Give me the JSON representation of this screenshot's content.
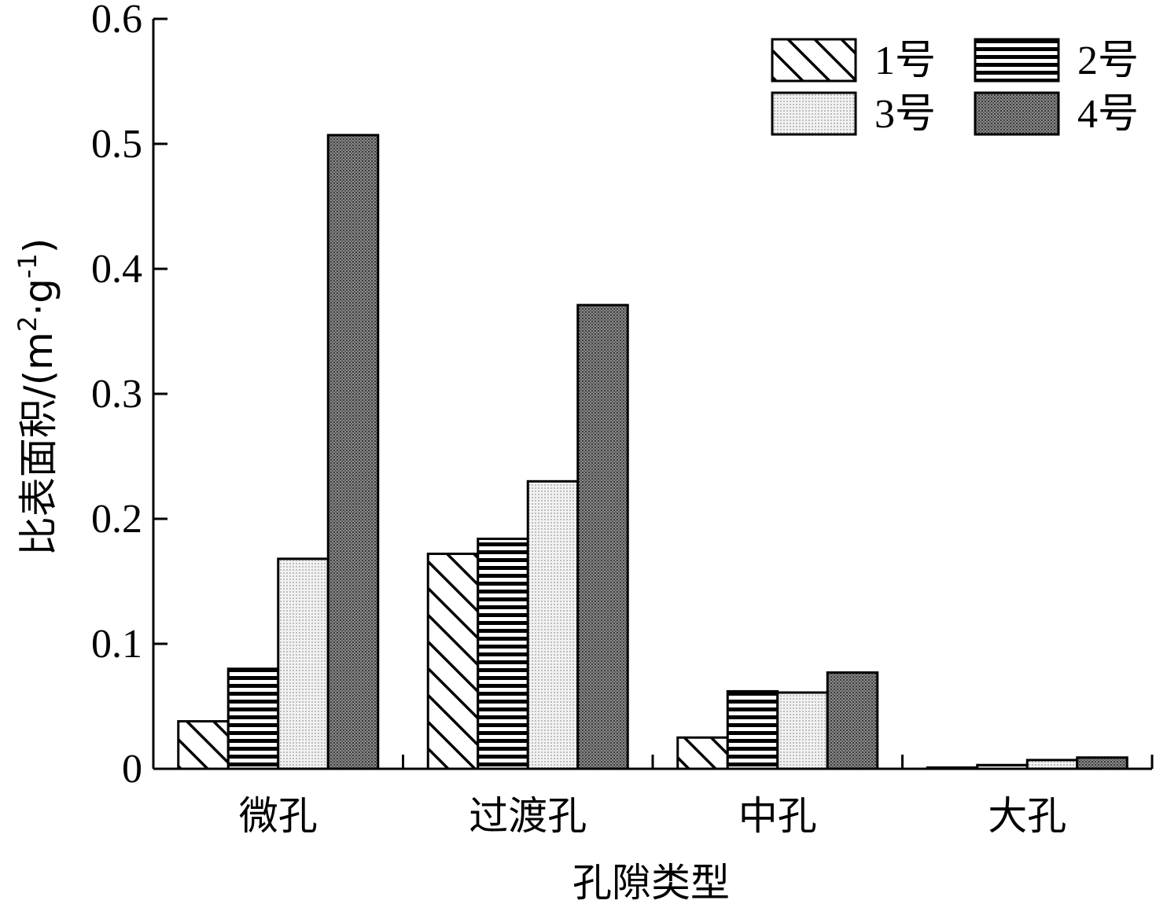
{
  "chart_data": {
    "type": "bar",
    "title": "",
    "xlabel": "孔隙类型",
    "ylabel_main": "比表面积/(m",
    "ylabel_sup1": "2",
    "ylabel_mid": "·g",
    "ylabel_sup2": "-1",
    "ylabel_end": ")",
    "ylim": [
      0,
      0.6
    ],
    "yticks": [
      "0",
      "0.1",
      "0.2",
      "0.3",
      "0.4",
      "0.5",
      "0.6"
    ],
    "categories": [
      "微孔",
      "过渡孔",
      "中孔",
      "大孔"
    ],
    "legend_position": "top-right",
    "grid": false,
    "series": [
      {
        "name": "1号",
        "pattern": "diagonal-hatch",
        "values": [
          0.038,
          0.172,
          0.025,
          0.001
        ]
      },
      {
        "name": "2号",
        "pattern": "horizontal-lines",
        "values": [
          0.08,
          0.184,
          0.062,
          0.003
        ]
      },
      {
        "name": "3号",
        "pattern": "light-dots",
        "values": [
          0.168,
          0.23,
          0.061,
          0.007
        ]
      },
      {
        "name": "4号",
        "pattern": "dark-dots",
        "values": [
          0.507,
          0.371,
          0.077,
          0.009
        ]
      }
    ]
  }
}
